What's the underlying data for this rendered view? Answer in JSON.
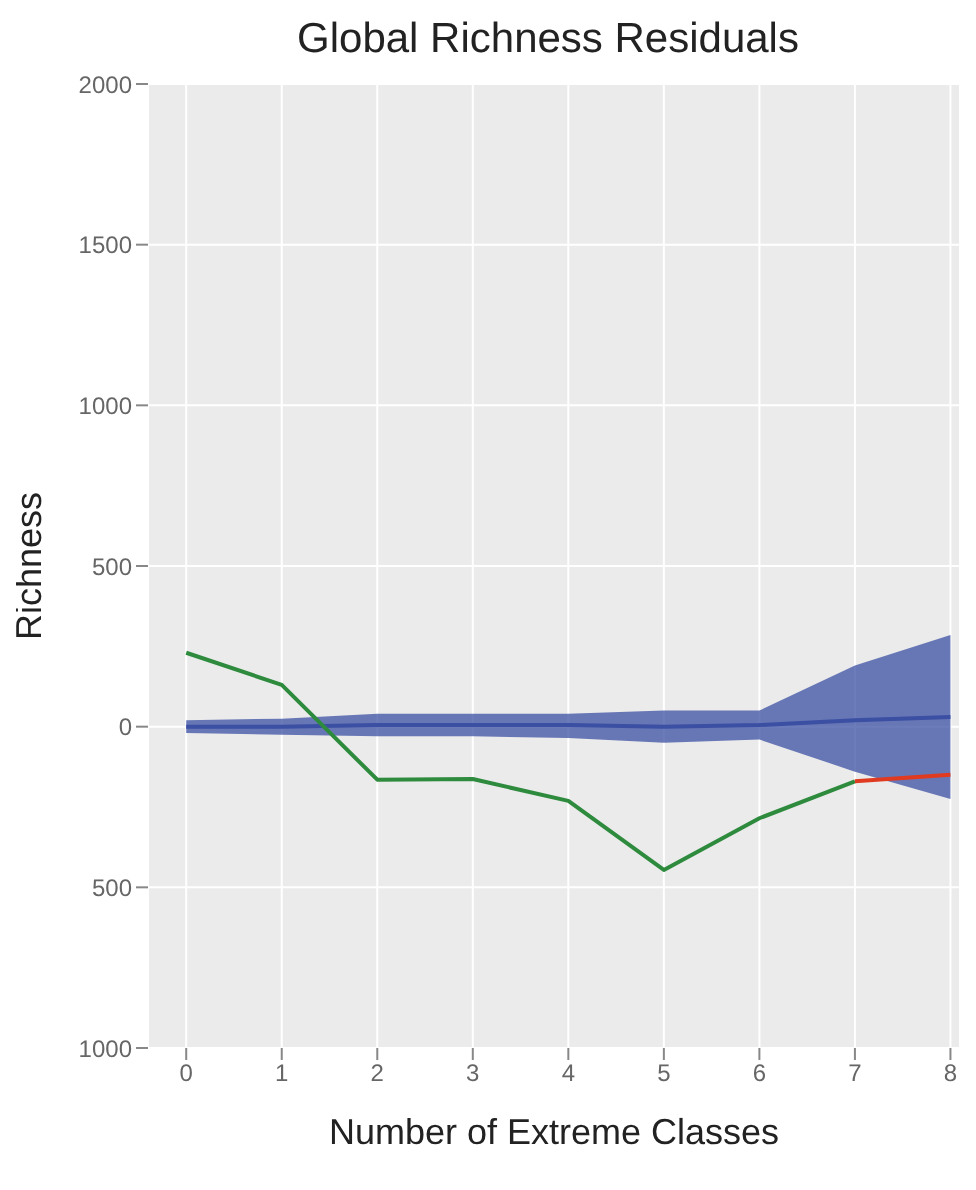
{
  "chart_data": {
    "type": "line",
    "title": "Global Richness Residuals",
    "xlabel": "Number of Extreme Classes",
    "ylabel": "Richness",
    "xlim": [
      -0.4,
      8.1
    ],
    "xticks": [
      0,
      1,
      2,
      3,
      4,
      5,
      6,
      7,
      8
    ],
    "ylim": [
      -1000,
      2000
    ],
    "yticks": [
      {
        "value": -1000,
        "label": "1000"
      },
      {
        "value": -500,
        "label": "500"
      },
      0,
      {
        "value": 500,
        "label": "500"
      },
      1000,
      1500,
      2000
    ],
    "grid": true,
    "series": [
      {
        "color": "#3b4fa3",
        "x": [
          0,
          1,
          2,
          3,
          4,
          5,
          6,
          7,
          8
        ],
        "values": [
          0,
          0,
          5,
          5,
          5,
          0,
          5,
          20,
          30
        ],
        "lower": [
          -20,
          -25,
          -30,
          -30,
          -35,
          -50,
          -40,
          -140,
          -225
        ],
        "upper": [
          20,
          25,
          40,
          40,
          40,
          50,
          50,
          190,
          285
        ]
      },
      {
        "color": "#2e8b3e",
        "x": [
          0,
          1,
          2,
          3,
          4,
          5,
          6,
          7
        ],
        "values": [
          230,
          130,
          -165,
          -163,
          -231,
          -446,
          -285,
          -170
        ]
      },
      {
        "color": "#e03a20",
        "x": [
          7,
          8
        ],
        "values": [
          -170,
          -150
        ]
      }
    ]
  }
}
